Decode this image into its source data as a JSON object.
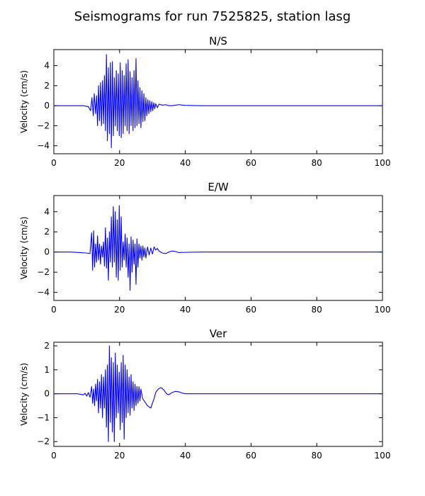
{
  "figure": {
    "title": "Seismograms for run 7525825, station lasg"
  },
  "chart_data": [
    {
      "type": "line",
      "title": "N/S",
      "xlabel": "",
      "ylabel": "Velocity (cm/s)",
      "xlim": [
        0,
        100
      ],
      "ylim": [
        -4.8,
        5.6
      ],
      "xticks": [
        0,
        20,
        40,
        60,
        80,
        100
      ],
      "yticks": [
        -4,
        -2,
        0,
        2,
        4
      ],
      "color": "#0000ff",
      "grid": false,
      "series": [
        {
          "x": [
            0,
            5,
            9,
            10.5,
            11.2,
            11.6,
            12,
            12.3,
            12.7,
            13,
            13.3,
            13.6,
            13.9,
            14.2,
            14.5,
            14.8,
            15.1,
            15.4,
            15.7,
            16,
            16.3,
            16.6,
            16.9,
            17.2,
            17.5,
            17.8,
            18.1,
            18.4,
            18.7,
            19,
            19.3,
            19.6,
            19.9,
            20.2,
            20.5,
            20.8,
            21.1,
            21.4,
            21.7,
            22,
            22.3,
            22.6,
            22.9,
            23.2,
            23.5,
            23.8,
            24.1,
            24.4,
            24.7,
            25,
            25.3,
            25.6,
            25.9,
            26.2,
            26.5,
            26.8,
            27.1,
            27.4,
            27.7,
            28,
            28.3,
            28.6,
            28.9,
            29.2,
            29.5,
            29.8,
            30.1,
            30.4,
            30.7,
            31,
            31.5,
            32,
            33,
            34,
            35,
            36,
            37,
            38,
            40,
            45,
            50,
            60,
            70,
            80,
            90,
            100
          ],
          "y": [
            0,
            0,
            0,
            -0.1,
            -0.5,
            0.8,
            -1,
            1.2,
            -0.8,
            1,
            -2,
            2,
            -1.5,
            2.3,
            -2,
            2.5,
            -1.8,
            3,
            -2.5,
            5.1,
            -3.5,
            3.8,
            -2.8,
            4.3,
            -4.2,
            4.4,
            -3,
            2.8,
            -2,
            3.5,
            -2.5,
            3.2,
            -3,
            4.3,
            -3.2,
            3.5,
            -2.8,
            3,
            -2,
            4.2,
            -2.5,
            4.6,
            -2.8,
            3.4,
            -2,
            2.8,
            -2.5,
            3.5,
            -2.2,
            4.7,
            -2,
            2.5,
            -1.8,
            1.8,
            -2.2,
            1.5,
            -1.6,
            1.2,
            -1.5,
            0.8,
            -1,
            0.6,
            -0.8,
            0.5,
            -0.6,
            0.4,
            -0.5,
            0.3,
            -0.3,
            0.2,
            -0.2,
            0.15,
            0.05,
            0.1,
            0,
            0,
            0.05,
            0.1,
            0.03,
            0,
            0,
            0,
            0,
            0,
            0,
            0
          ]
        }
      ]
    },
    {
      "type": "line",
      "title": "E/W",
      "xlabel": "",
      "ylabel": "Velocity (cm/s)",
      "xlim": [
        0,
        100
      ],
      "ylim": [
        -4.8,
        5.6
      ],
      "xticks": [
        0,
        20,
        40,
        60,
        80,
        100
      ],
      "yticks": [
        -4,
        -2,
        0,
        2,
        4
      ],
      "color": "#0000ff",
      "grid": false,
      "series": [
        {
          "x": [
            0,
            5,
            8,
            10,
            11,
            11.5,
            11.8,
            12.1,
            12.4,
            12.7,
            13,
            13.3,
            13.6,
            13.9,
            14.2,
            14.5,
            14.8,
            15.1,
            15.4,
            15.7,
            16,
            16.3,
            16.6,
            16.9,
            17.2,
            17.5,
            17.8,
            18.1,
            18.4,
            18.7,
            19,
            19.3,
            19.6,
            19.9,
            20.2,
            20.5,
            20.8,
            21.1,
            21.4,
            21.7,
            22,
            22.3,
            22.6,
            22.9,
            23.2,
            23.5,
            23.8,
            24.1,
            24.4,
            24.7,
            25,
            25.3,
            25.6,
            25.9,
            26.2,
            26.5,
            26.8,
            27.1,
            27.4,
            27.7,
            28,
            28.5,
            29,
            29.5,
            30,
            30.5,
            31,
            31.5,
            32,
            33,
            34,
            35,
            36,
            37,
            38,
            40,
            45,
            50,
            60,
            80,
            100
          ],
          "y": [
            0,
            0,
            -0.05,
            -0.1,
            -0.15,
            1.9,
            -1.8,
            2.1,
            -1.5,
            0.8,
            -1,
            1.6,
            -0.8,
            0.8,
            -1.2,
            0.6,
            -0.5,
            1,
            -1.4,
            2.4,
            -1.6,
            1.4,
            -2.8,
            2,
            -1,
            3.5,
            -1.5,
            4.5,
            -1,
            4,
            -2.5,
            3.2,
            -2.8,
            4.6,
            -1.8,
            3.5,
            -1.5,
            1,
            -0.8,
            1.8,
            -1.5,
            1.4,
            -2.5,
            0.8,
            -3.8,
            1.5,
            -2,
            1.2,
            -1.2,
            0.8,
            -3.2,
            1.3,
            -1.5,
            0.8,
            -0.6,
            0.6,
            -0.8,
            0.6,
            -0.5,
            0.4,
            -0.6,
            0.5,
            -0.3,
            0.4,
            -0.2,
            0.5,
            0.2,
            0.35,
            0.1,
            -0.1,
            -0.15,
            0,
            0.1,
            0.05,
            -0.05,
            -0.03,
            0,
            0,
            0,
            0,
            0
          ]
        }
      ]
    },
    {
      "type": "line",
      "title": "Ver",
      "xlabel": "",
      "ylabel": "Velocity (cm/s)",
      "xlim": [
        0,
        100
      ],
      "ylim": [
        -2.2,
        2.15
      ],
      "xticks": [
        0,
        20,
        40,
        60,
        80,
        100
      ],
      "yticks": [
        -2,
        -1,
        0,
        1,
        2
      ],
      "color": "#0000ff",
      "grid": false,
      "series": [
        {
          "x": [
            0,
            5,
            7,
            8,
            9,
            9.5,
            10,
            10.5,
            11,
            11.5,
            11.8,
            12.1,
            12.4,
            12.7,
            13,
            13.3,
            13.6,
            13.9,
            14.2,
            14.5,
            14.8,
            15.1,
            15.4,
            15.7,
            16,
            16.3,
            16.6,
            16.9,
            17.2,
            17.5,
            17.8,
            18.1,
            18.4,
            18.7,
            19,
            19.3,
            19.6,
            19.9,
            20.2,
            20.5,
            20.8,
            21.1,
            21.4,
            21.7,
            22,
            22.3,
            22.6,
            22.9,
            23.2,
            23.5,
            23.8,
            24.1,
            24.4,
            24.7,
            25,
            25.3,
            25.6,
            25.9,
            26.2,
            26.5,
            27,
            27.5,
            28,
            28.5,
            29,
            29.5,
            30,
            30.5,
            31,
            31.5,
            32,
            32.5,
            33,
            33.5,
            34,
            34.5,
            35,
            36,
            37,
            38,
            39,
            40,
            42,
            45,
            50,
            60,
            80,
            100
          ],
          "y": [
            0,
            0,
            0,
            -0.02,
            -0.05,
            0.02,
            -0.1,
            0.05,
            -0.15,
            0.3,
            -0.4,
            0.2,
            -0.5,
            0.4,
            -0.3,
            0.6,
            -0.8,
            0.5,
            -0.6,
            0.8,
            -1,
            0.7,
            -0.6,
            1,
            -1.4,
            1.2,
            -2,
            2,
            -1.2,
            1.5,
            -1.6,
            1.3,
            -2,
            1.7,
            -1,
            1.2,
            -0.8,
            0.9,
            -1.5,
            1.3,
            -1.2,
            1.6,
            -1.9,
            1.2,
            -1,
            1,
            -0.8,
            0.7,
            -0.9,
            0.8,
            -0.6,
            0.5,
            -0.7,
            0.4,
            -0.5,
            0.3,
            -0.4,
            0.3,
            -0.3,
            0.2,
            -0.2,
            -0.3,
            -0.4,
            -0.5,
            -0.55,
            -0.6,
            -0.4,
            -0.2,
            0.05,
            0.15,
            0.22,
            0.25,
            0.22,
            0.15,
            0.05,
            -0.02,
            -0.04,
            0.05,
            0.1,
            0.08,
            0.03,
            0,
            0,
            0,
            0,
            0,
            0,
            0
          ]
        }
      ]
    }
  ]
}
